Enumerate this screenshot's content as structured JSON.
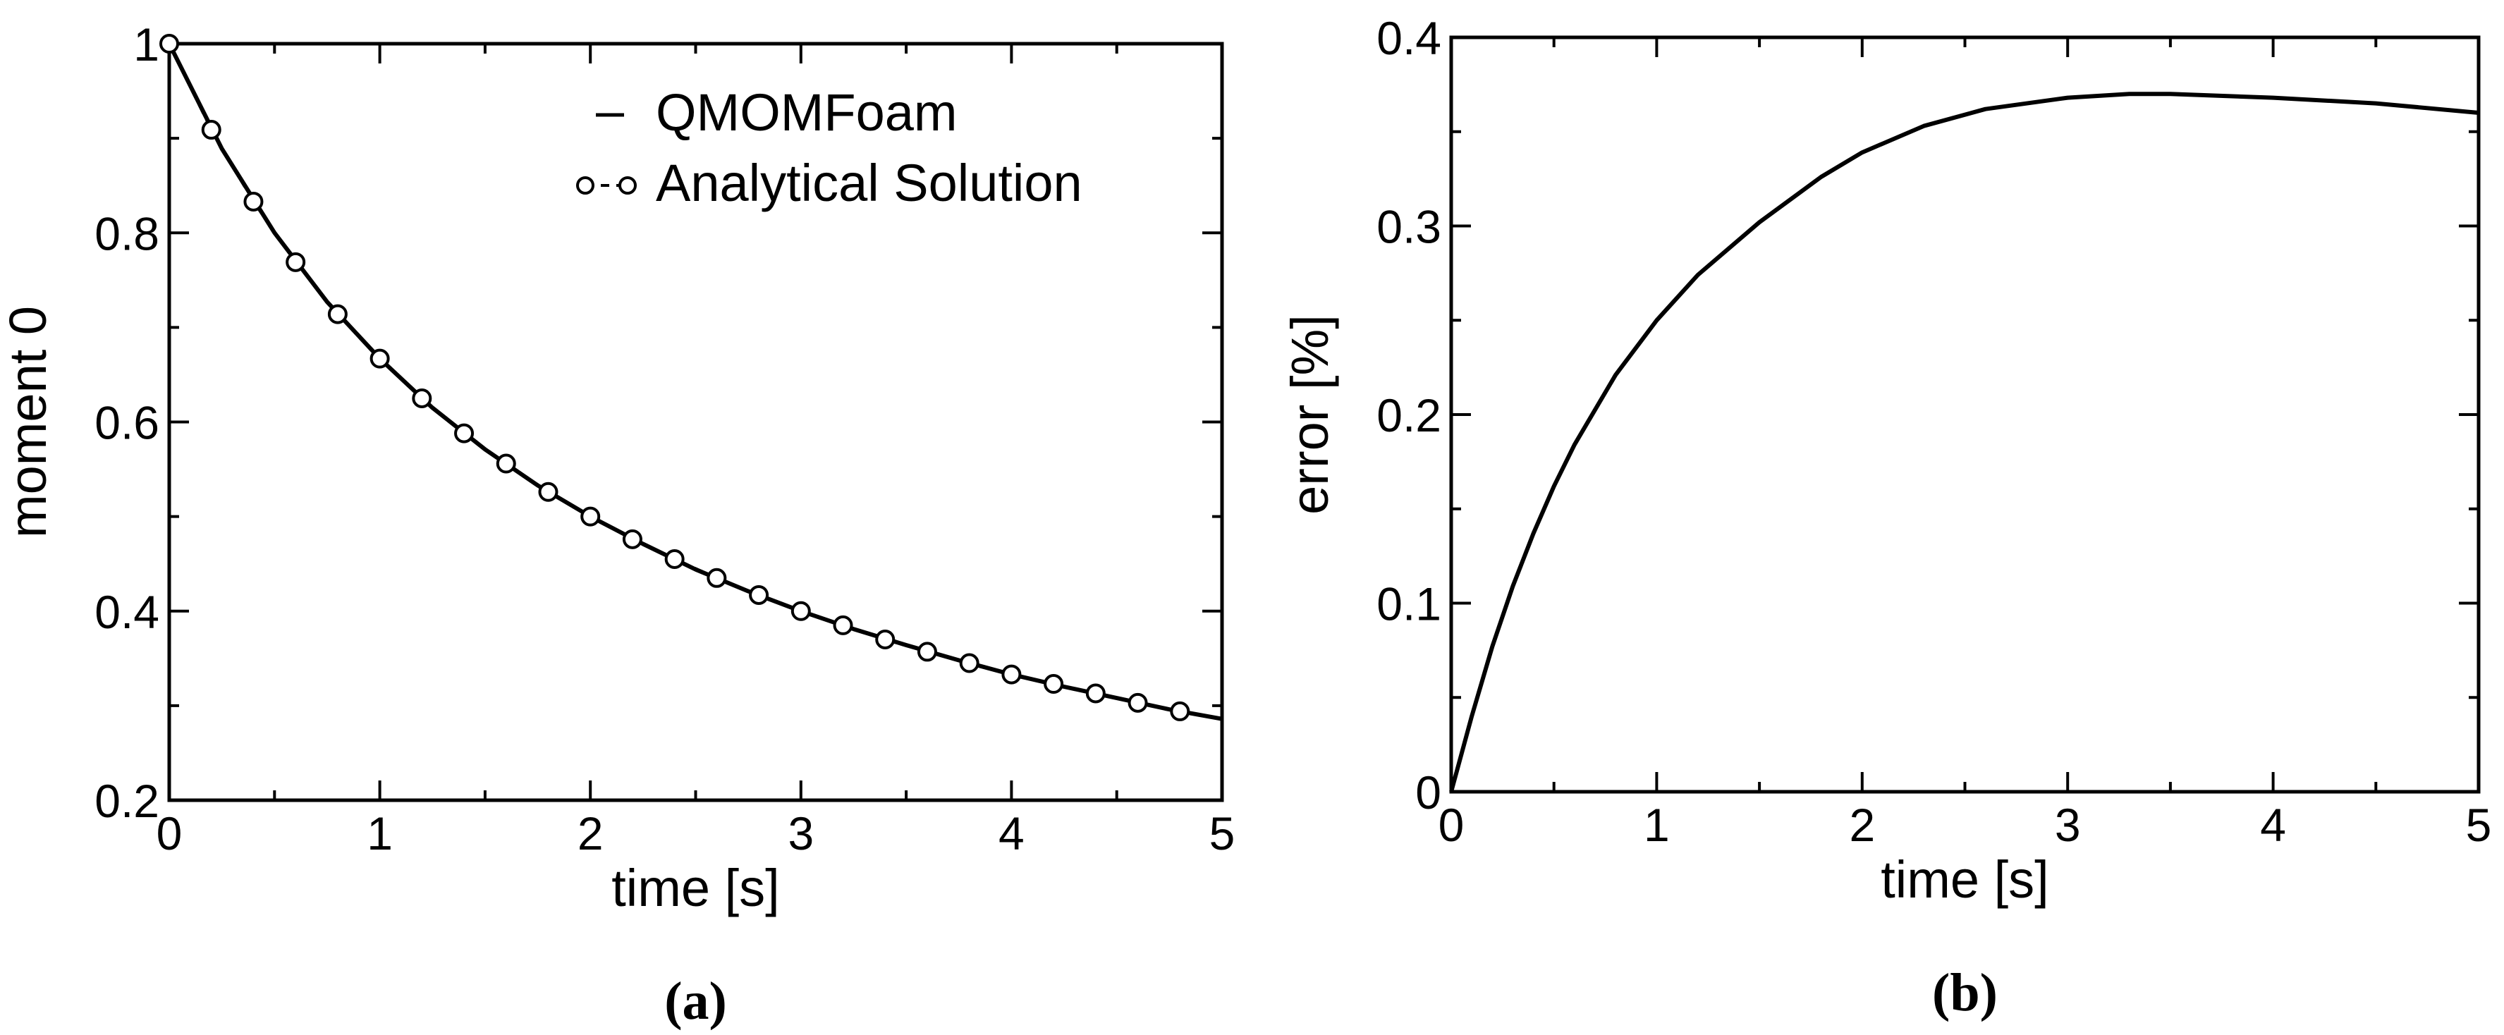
{
  "chart_data": [
    {
      "panel": "(a)",
      "type": "line",
      "xlabel": "time [s]",
      "ylabel": "moment 0",
      "xlim": [
        0,
        5
      ],
      "ylim": [
        0.2,
        1
      ],
      "xticks": [
        "0",
        "1",
        "2",
        "3",
        "4",
        "5"
      ],
      "yticks": [
        "0.2",
        "0.4",
        "0.6",
        "0.8",
        "1"
      ],
      "grid": false,
      "legend_position": "top-right",
      "series": [
        {
          "name": "QMOMFoam",
          "style": "solid line",
          "x": [
            0,
            0.25,
            0.5,
            0.75,
            1.0,
            1.25,
            1.5,
            1.75,
            2.0,
            2.25,
            2.5,
            2.75,
            3.0,
            3.25,
            3.5,
            3.75,
            4.0,
            4.25,
            4.5,
            4.75,
            5.0
          ],
          "y": [
            1.0,
            0.889,
            0.8,
            0.727,
            0.667,
            0.615,
            0.571,
            0.533,
            0.5,
            0.471,
            0.444,
            0.421,
            0.4,
            0.381,
            0.364,
            0.348,
            0.333,
            0.32,
            0.308,
            0.296,
            0.286
          ]
        },
        {
          "name": "Analytical Solution",
          "style": "dashed line with circle markers",
          "x": [
            0,
            0.2,
            0.4,
            0.6,
            0.8,
            1.0,
            1.2,
            1.4,
            1.6,
            1.8,
            2.0,
            2.2,
            2.4,
            2.6,
            2.8,
            3.0,
            3.2,
            3.4,
            3.6,
            3.8,
            4.0,
            4.2,
            4.4,
            4.6,
            4.8
          ],
          "y": [
            1.0,
            0.909,
            0.833,
            0.769,
            0.714,
            0.667,
            0.625,
            0.588,
            0.556,
            0.526,
            0.5,
            0.476,
            0.455,
            0.435,
            0.417,
            0.4,
            0.385,
            0.37,
            0.357,
            0.345,
            0.333,
            0.323,
            0.313,
            0.303,
            0.294
          ]
        }
      ]
    },
    {
      "panel": "(b)",
      "type": "line",
      "xlabel": "time [s]",
      "ylabel": "error [%]",
      "xlim": [
        0,
        5
      ],
      "ylim": [
        0,
        0.4
      ],
      "xticks": [
        "0",
        "1",
        "2",
        "3",
        "4",
        "5"
      ],
      "yticks": [
        "0",
        "0.1",
        "0.2",
        "0.3",
        "0.4"
      ],
      "grid": false,
      "series": [
        {
          "name": "",
          "style": "solid line",
          "x": [
            0,
            0.1,
            0.2,
            0.3,
            0.4,
            0.5,
            0.6,
            0.8,
            1.0,
            1.2,
            1.5,
            1.8,
            2.0,
            2.3,
            2.6,
            3.0,
            3.3,
            3.5,
            4.0,
            4.5,
            5.0
          ],
          "y": [
            0,
            0.04,
            0.077,
            0.109,
            0.137,
            0.162,
            0.184,
            0.221,
            0.25,
            0.274,
            0.302,
            0.326,
            0.339,
            0.353,
            0.362,
            0.368,
            0.37,
            0.37,
            0.368,
            0.365,
            0.36
          ]
        }
      ]
    }
  ]
}
